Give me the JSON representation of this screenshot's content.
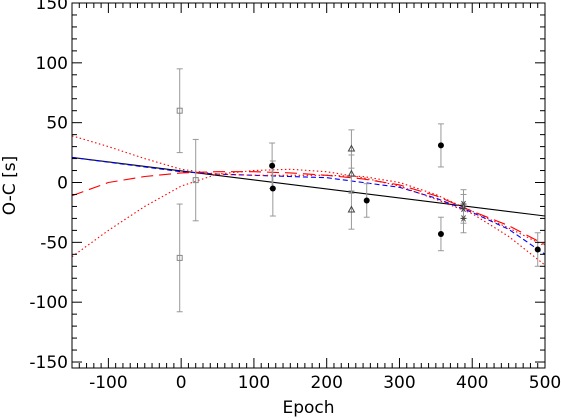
{
  "chart_data": {
    "type": "scatter",
    "title": "",
    "xlabel": "Epoch",
    "ylabel": "O-C [s]",
    "xlim": [
      -150,
      500
    ],
    "ylim": [
      -155,
      150
    ],
    "x_ticks": [
      -100,
      0,
      100,
      200,
      300,
      400,
      500
    ],
    "x_tick_labels": [
      "-100",
      "0",
      "100",
      "200",
      "300",
      "400",
      "500"
    ],
    "y_ticks": [
      -150,
      -100,
      -50,
      0,
      50,
      100,
      150
    ],
    "y_tick_labels": [
      "-150",
      "-100",
      "-50",
      "0",
      "50",
      "100",
      "150"
    ],
    "grid": false,
    "legend": "none",
    "series": [
      {
        "marker": "square",
        "color": "#888888",
        "points": [
          {
            "x": -2,
            "y": 60,
            "err": 35
          },
          {
            "x": -2,
            "y": -63,
            "err": 45
          },
          {
            "x": 20,
            "y": 2,
            "err": 34
          }
        ]
      },
      {
        "marker": "filled-circle",
        "color": "#000000",
        "points": [
          {
            "x": 125,
            "y": 14,
            "err": 19
          },
          {
            "x": 126,
            "y": -5,
            "err": 23
          },
          {
            "x": 255,
            "y": -15,
            "err": 14
          },
          {
            "x": 357,
            "y": 31,
            "err": 18
          },
          {
            "x": 357,
            "y": -43,
            "err": 14
          },
          {
            "x": 490,
            "y": -56,
            "err": 14
          }
        ]
      },
      {
        "marker": "triangle",
        "color": "#444444",
        "points": [
          {
            "x": 234,
            "y": 28,
            "err": 16
          },
          {
            "x": 234,
            "y": 7,
            "err": 16
          },
          {
            "x": 234,
            "y": -23,
            "err": 16
          }
        ]
      },
      {
        "marker": "asterisk",
        "color": "#444444",
        "points": [
          {
            "x": 388,
            "y": -18,
            "err": 12
          },
          {
            "x": 388,
            "y": -22,
            "err": 12
          },
          {
            "x": 388,
            "y": -30,
            "err": 12
          }
        ]
      }
    ],
    "curves": [
      {
        "style": "solid",
        "color": "#000000",
        "x": [
          -150,
          500
        ],
        "y": [
          21,
          -28
        ]
      },
      {
        "style": "dashed",
        "color": "#0000ff",
        "x": [
          -150,
          -100,
          -50,
          0,
          50,
          100,
          150,
          200,
          250,
          300,
          350,
          400,
          450,
          500
        ],
        "y": [
          21,
          17,
          13,
          9,
          7,
          6,
          5,
          4,
          0,
          -4,
          -13,
          -25,
          -39,
          -60
        ]
      },
      {
        "style": "long-dash",
        "color": "#ff0000",
        "x": [
          -150,
          -100,
          -50,
          0,
          50,
          100,
          150,
          200,
          250,
          300,
          350,
          400,
          450,
          500
        ],
        "y": [
          -11,
          0,
          5,
          8,
          9,
          9,
          8,
          6,
          3,
          -2,
          -11,
          -24,
          -36,
          -52
        ]
      },
      {
        "style": "dotted",
        "color": "#ff0000",
        "x": [
          -150,
          -100,
          -50,
          0,
          50,
          100,
          150,
          200,
          250,
          300,
          350,
          400,
          450,
          500
        ],
        "y": [
          39,
          30,
          20,
          11,
          7,
          6,
          6,
          6,
          5,
          0,
          -10,
          -24,
          -38,
          -53
        ]
      },
      {
        "style": "dotted",
        "color": "#ff0000",
        "x": [
          -150,
          -100,
          -50,
          0,
          50,
          100,
          150,
          200,
          250,
          300,
          350,
          400,
          450,
          500
        ],
        "y": [
          -62,
          -40,
          -20,
          -3,
          7,
          10,
          11,
          9,
          4,
          -3,
          -14,
          -26,
          -45,
          -69
        ]
      }
    ]
  }
}
